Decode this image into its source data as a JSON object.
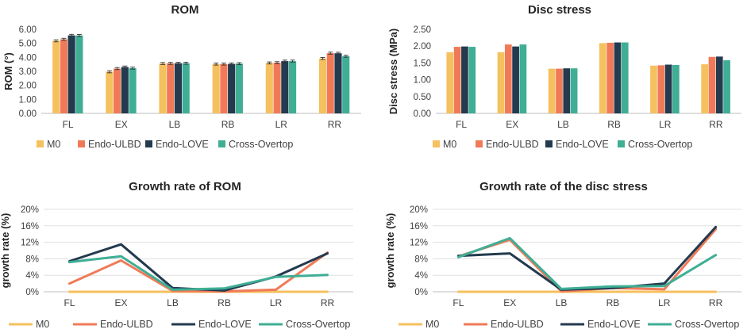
{
  "colors": {
    "M0": "#F5C05E",
    "Endo-ULBD": "#F07A58",
    "Endo-LOVE": "#233A4F",
    "Cross-Overtop": "#3FAE95",
    "axis": "#BFBFBF",
    "grid": "#E0E0E0",
    "text": "#404040",
    "title": "#262626"
  },
  "chart_data": [
    {
      "type": "bar",
      "title": "ROM",
      "xlabel": "",
      "ylabel": "ROM (°)",
      "ylim": [
        0,
        6
      ],
      "yticks": [
        "0.00",
        "1.00",
        "2.00",
        "3.00",
        "4.00",
        "5.00",
        "6.00"
      ],
      "ytick_values": [
        0,
        1,
        2,
        3,
        4,
        5,
        6
      ],
      "error_bars": true,
      "grid": false,
      "legend": "bottom",
      "categories": [
        "FL",
        "EX",
        "LB",
        "RB",
        "LR",
        "RR"
      ],
      "series": [
        {
          "name": "M0",
          "values": [
            5.18,
            2.97,
            3.56,
            3.52,
            3.6,
            3.92
          ]
        },
        {
          "name": "Endo-ULBD",
          "values": [
            5.29,
            3.2,
            3.57,
            3.52,
            3.62,
            4.3
          ]
        },
        {
          "name": "Endo-LOVE",
          "values": [
            5.57,
            3.31,
            3.58,
            3.53,
            3.73,
            4.29
          ]
        },
        {
          "name": "Cross-Overtop",
          "values": [
            5.56,
            3.23,
            3.58,
            3.55,
            3.73,
            4.08
          ]
        }
      ]
    },
    {
      "type": "bar",
      "title": "Disc stress",
      "xlabel": "",
      "ylabel": "Disc stress (MPa)",
      "ylim": [
        0,
        2.5
      ],
      "yticks": [
        "0.00",
        "0.50",
        "1.00",
        "1.50",
        "2.00",
        "2.50"
      ],
      "ytick_values": [
        0,
        0.5,
        1,
        1.5,
        2,
        2.5
      ],
      "error_bars": false,
      "grid": false,
      "legend": "bottom",
      "categories": [
        "FL",
        "EX",
        "LB",
        "RB",
        "LR",
        "RR"
      ],
      "series": [
        {
          "name": "M0",
          "values": [
            1.82,
            1.82,
            1.33,
            2.09,
            1.42,
            1.46
          ]
        },
        {
          "name": "Endo-ULBD",
          "values": [
            1.98,
            2.05,
            1.33,
            2.1,
            1.43,
            1.68
          ]
        },
        {
          "name": "Endo-LOVE",
          "values": [
            1.99,
            1.99,
            1.34,
            2.11,
            1.45,
            1.69
          ]
        },
        {
          "name": "Cross-Overtop",
          "values": [
            1.98,
            2.05,
            1.34,
            2.11,
            1.44,
            1.58
          ]
        }
      ]
    },
    {
      "type": "line",
      "title": "Growth rate of ROM",
      "xlabel": "",
      "ylabel": "growth rate (%)",
      "ylim": [
        0,
        20
      ],
      "yticks": [
        "0%",
        "4%",
        "8%",
        "12%",
        "16%",
        "20%"
      ],
      "ytick_values": [
        0,
        4,
        8,
        12,
        16,
        20
      ],
      "grid": true,
      "legend": "bottom",
      "categories": [
        "FL",
        "EX",
        "LB",
        "RB",
        "LR",
        "RR"
      ],
      "series": [
        {
          "name": "M0",
          "values": [
            0,
            0,
            0,
            0,
            0,
            0
          ]
        },
        {
          "name": "Endo-ULBD",
          "values": [
            2.0,
            7.6,
            0.2,
            0.1,
            0.5,
            9.5
          ]
        },
        {
          "name": "Endo-LOVE",
          "values": [
            7.4,
            11.5,
            0.9,
            0.3,
            3.7,
            9.3
          ]
        },
        {
          "name": "Cross-Overtop",
          "values": [
            7.2,
            8.6,
            0.5,
            0.8,
            3.6,
            4.1
          ]
        }
      ]
    },
    {
      "type": "line",
      "title": "Growth rate of the disc stress",
      "xlabel": "",
      "ylabel": "growth rate (%)",
      "ylim": [
        0,
        20
      ],
      "yticks": [
        "0%",
        "4%",
        "8%",
        "12%",
        "16%",
        "20%"
      ],
      "ytick_values": [
        0,
        4,
        8,
        12,
        16,
        20
      ],
      "grid": true,
      "legend": "bottom",
      "categories": [
        "FL",
        "EX",
        "LB",
        "RB",
        "LR",
        "RR"
      ],
      "series": [
        {
          "name": "M0",
          "values": [
            0,
            0,
            0,
            0,
            0,
            0
          ]
        },
        {
          "name": "Endo-ULBD",
          "values": [
            8.6,
            12.6,
            0.1,
            0.9,
            0.6,
            15.2
          ]
        },
        {
          "name": "Endo-LOVE",
          "values": [
            8.7,
            9.3,
            0.5,
            0.9,
            2.0,
            15.7
          ]
        },
        {
          "name": "Cross-Overtop",
          "values": [
            8.4,
            13.0,
            0.7,
            1.3,
            1.4,
            8.9
          ]
        }
      ]
    }
  ]
}
